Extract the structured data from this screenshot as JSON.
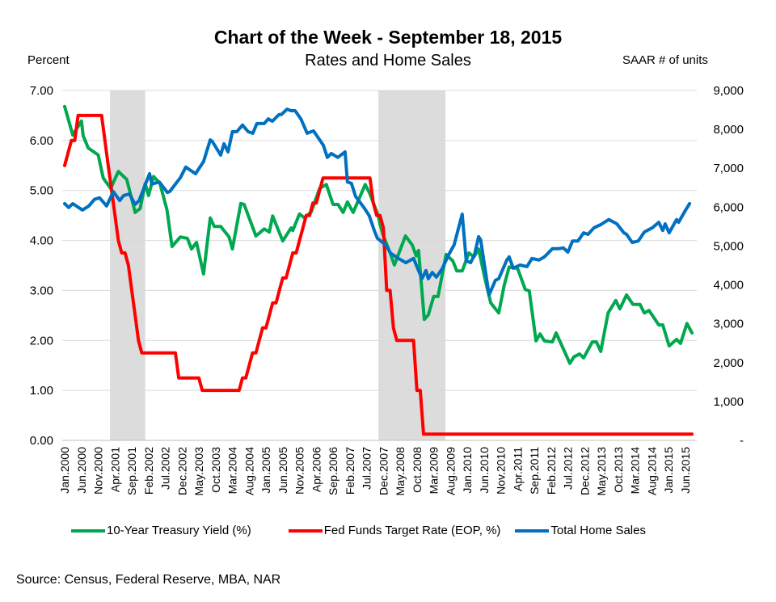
{
  "chart_data": {
    "type": "line",
    "title": "Chart of the Week - September 18, 2015",
    "subtitle": "Rates and Home Sales",
    "ylabel_left": "Percent",
    "ylabel_right": "SAAR # of units",
    "x_unit": "months since Jan 2000",
    "x_range": [
      0,
      187
    ],
    "ylim_left": [
      0,
      7
    ],
    "ylim_right": [
      0,
      9000
    ],
    "y_ticks_left": [
      "0.00",
      "1.00",
      "2.00",
      "3.00",
      "4.00",
      "5.00",
      "6.00",
      "7.00"
    ],
    "y_ticks_right": [
      "-",
      "1,000",
      "2,000",
      "3,000",
      "4,000",
      "5,000",
      "6,000",
      "7,000",
      "8,000",
      "9,000"
    ],
    "x_tick_labels": [
      "Jan.2000",
      "Jun.2000",
      "Nov.2000",
      "Apr.2001",
      "Sep.2001",
      "Feb.2002",
      "Jul.2002",
      "Dec.2002",
      "May.2003",
      "Oct.2003",
      "Mar.2004",
      "Aug.2004",
      "Jan.2005",
      "Jun.2005",
      "Nov.2005",
      "Apr.2006",
      "Sep.2006",
      "Feb.2007",
      "Jul.2007",
      "Dec.2007",
      "May.2008",
      "Oct.2008",
      "Mar.2009",
      "Aug.2009",
      "Jan.2010",
      "Jun.2010",
      "Nov.2010",
      "Apr.2011",
      "Sep.2011",
      "Feb.2012",
      "Jul.2012",
      "Dec.2012",
      "May.2013",
      "Oct.2013",
      "Mar.2014",
      "Aug.2014",
      "Jan.2015",
      "Jun.2015"
    ],
    "x_tick_step_months": 5,
    "grid": true,
    "legend_position": "bottom",
    "recessions_months": [
      [
        14,
        24.5
      ],
      [
        94,
        114
      ]
    ],
    "series": [
      {
        "name": "10-Year Treasury Yield (%)",
        "axis": "left",
        "color": "#00a84f",
        "points": [
          [
            0,
            6.68
          ],
          [
            2.4,
            6.11
          ],
          [
            5,
            6.39
          ],
          [
            5.5,
            6.1
          ],
          [
            7,
            5.85
          ],
          [
            10,
            5.71
          ],
          [
            11.5,
            5.25
          ],
          [
            13.7,
            5.04
          ],
          [
            16,
            5.38
          ],
          [
            18.5,
            5.22
          ],
          [
            21,
            4.56
          ],
          [
            22.5,
            4.64
          ],
          [
            24,
            5.14
          ],
          [
            25,
            4.9
          ],
          [
            26.5,
            5.28
          ],
          [
            28.4,
            5.14
          ],
          [
            30.5,
            4.61
          ],
          [
            32,
            3.88
          ],
          [
            34.5,
            4.07
          ],
          [
            36.6,
            4.04
          ],
          [
            37.8,
            3.83
          ],
          [
            39.3,
            3.96
          ],
          [
            41.4,
            3.33
          ],
          [
            43.4,
            4.45
          ],
          [
            44.6,
            4.28
          ],
          [
            46.5,
            4.28
          ],
          [
            49,
            4.07
          ],
          [
            50,
            3.83
          ],
          [
            52.5,
            4.74
          ],
          [
            53.5,
            4.72
          ],
          [
            57,
            4.09
          ],
          [
            59.5,
            4.23
          ],
          [
            61,
            4.17
          ],
          [
            62,
            4.49
          ],
          [
            65,
            3.99
          ],
          [
            67.5,
            4.25
          ],
          [
            68,
            4.2
          ],
          [
            70,
            4.53
          ],
          [
            71.5,
            4.45
          ],
          [
            73.5,
            4.57
          ],
          [
            76,
            5.04
          ],
          [
            78,
            5.12
          ],
          [
            80,
            4.72
          ],
          [
            81.5,
            4.72
          ],
          [
            83,
            4.56
          ],
          [
            84.3,
            4.77
          ],
          [
            86,
            4.56
          ],
          [
            89.6,
            5.12
          ],
          [
            91,
            4.93
          ],
          [
            93.5,
            4.49
          ],
          [
            94,
            4.33
          ],
          [
            95,
            4.09
          ],
          [
            97,
            3.75
          ],
          [
            98.3,
            3.51
          ],
          [
            101.6,
            4.09
          ],
          [
            103.6,
            3.91
          ],
          [
            104.8,
            3.69
          ],
          [
            105.5,
            3.8
          ],
          [
            107.2,
            2.42
          ],
          [
            108.4,
            2.51
          ],
          [
            110,
            2.88
          ],
          [
            111.3,
            2.88
          ],
          [
            113.7,
            3.72
          ],
          [
            115.7,
            3.59
          ],
          [
            116.9,
            3.39
          ],
          [
            118.5,
            3.39
          ],
          [
            120.5,
            3.75
          ],
          [
            122,
            3.67
          ],
          [
            123.4,
            3.83
          ],
          [
            125.3,
            3.23
          ],
          [
            127,
            2.75
          ],
          [
            129.4,
            2.55
          ],
          [
            131,
            3.1
          ],
          [
            132.5,
            3.47
          ],
          [
            135,
            3.44
          ],
          [
            137.3,
            3.02
          ],
          [
            138.5,
            2.99
          ],
          [
            140.5,
            1.99
          ],
          [
            141.7,
            2.13
          ],
          [
            143,
            1.99
          ],
          [
            145.4,
            1.97
          ],
          [
            146.5,
            2.15
          ],
          [
            150.6,
            1.54
          ],
          [
            151.8,
            1.67
          ],
          [
            153.5,
            1.73
          ],
          [
            154.7,
            1.65
          ],
          [
            157.3,
            1.97
          ],
          [
            158.5,
            1.97
          ],
          [
            159.8,
            1.78
          ],
          [
            162,
            2.55
          ],
          [
            164.3,
            2.8
          ],
          [
            165.5,
            2.63
          ],
          [
            167.5,
            2.91
          ],
          [
            169.4,
            2.72
          ],
          [
            171.5,
            2.72
          ],
          [
            172.8,
            2.55
          ],
          [
            174.2,
            2.6
          ],
          [
            176,
            2.42
          ],
          [
            177.1,
            2.31
          ],
          [
            178.3,
            2.31
          ],
          [
            180.2,
            1.89
          ],
          [
            182.4,
            2.02
          ],
          [
            183.6,
            1.94
          ],
          [
            185.5,
            2.34
          ],
          [
            187,
            2.15
          ]
        ]
      },
      {
        "name": "Fed Funds Target Rate (EOP, %)",
        "axis": "left",
        "color": "#ff0000",
        "steps": [
          [
            0,
            5.5
          ],
          [
            1,
            5.75
          ],
          [
            2,
            6.0
          ],
          [
            4,
            6.5
          ],
          [
            12,
            6.0
          ],
          [
            13,
            5.5
          ],
          [
            14,
            5.0
          ],
          [
            15,
            4.5
          ],
          [
            16,
            4.0
          ],
          [
            17,
            3.75
          ],
          [
            19,
            3.5
          ],
          [
            20,
            3.0
          ],
          [
            21,
            2.5
          ],
          [
            22,
            2.0
          ],
          [
            23,
            1.75
          ],
          [
            34,
            1.25
          ],
          [
            41,
            1.0
          ],
          [
            53,
            1.25
          ],
          [
            55,
            1.5
          ],
          [
            56,
            1.75
          ],
          [
            58,
            2.0
          ],
          [
            59,
            2.25
          ],
          [
            61,
            2.5
          ],
          [
            62,
            2.75
          ],
          [
            64,
            3.0
          ],
          [
            65,
            3.25
          ],
          [
            67,
            3.5
          ],
          [
            68,
            3.75
          ],
          [
            70,
            4.0
          ],
          [
            71,
            4.25
          ],
          [
            72,
            4.5
          ],
          [
            74,
            4.75
          ],
          [
            76,
            5.0
          ],
          [
            77,
            5.25
          ],
          [
            92,
            4.75
          ],
          [
            93,
            4.5
          ],
          [
            95,
            4.25
          ],
          [
            96,
            3.0
          ],
          [
            98,
            2.25
          ],
          [
            99,
            2.0
          ],
          [
            105,
            1.0
          ],
          [
            106,
            1.0
          ],
          [
            107,
            0.125
          ]
        ],
        "end_month": 187
      },
      {
        "name": "Total Home Sales",
        "axis": "right",
        "color": "#0070c0",
        "points": [
          [
            0,
            6090
          ],
          [
            1.2,
            5990
          ],
          [
            2.4,
            6090
          ],
          [
            5.3,
            5925
          ],
          [
            7.2,
            6030
          ],
          [
            8.9,
            6200
          ],
          [
            10.4,
            6240
          ],
          [
            12.5,
            6030
          ],
          [
            14.5,
            6400
          ],
          [
            16.4,
            6170
          ],
          [
            17.6,
            6300
          ],
          [
            19.3,
            6340
          ],
          [
            21,
            6070
          ],
          [
            22.2,
            6170
          ],
          [
            25.3,
            6860
          ],
          [
            26,
            6590
          ],
          [
            28.2,
            6650
          ],
          [
            30.6,
            6380
          ],
          [
            31.3,
            6400
          ],
          [
            33,
            6590
          ],
          [
            34.5,
            6760
          ],
          [
            36.1,
            7030
          ],
          [
            39,
            6860
          ],
          [
            41.4,
            7170
          ],
          [
            43.4,
            7730
          ],
          [
            44,
            7690
          ],
          [
            46.5,
            7340
          ],
          [
            47.5,
            7630
          ],
          [
            48.7,
            7420
          ],
          [
            50,
            7940
          ],
          [
            51.3,
            7940
          ],
          [
            53,
            8110
          ],
          [
            54.7,
            7940
          ],
          [
            56.1,
            7900
          ],
          [
            57.3,
            8150
          ],
          [
            59.5,
            8150
          ],
          [
            60.7,
            8270
          ],
          [
            61.9,
            8210
          ],
          [
            63.9,
            8380
          ],
          [
            64.6,
            8380
          ],
          [
            66.3,
            8520
          ],
          [
            67.5,
            8480
          ],
          [
            68.7,
            8480
          ],
          [
            70.4,
            8270
          ],
          [
            72.3,
            7900
          ],
          [
            74.2,
            7960
          ],
          [
            77.1,
            7590
          ],
          [
            78.3,
            7280
          ],
          [
            79.5,
            7380
          ],
          [
            81.4,
            7280
          ],
          [
            83.6,
            7420
          ],
          [
            84.3,
            6650
          ],
          [
            85.5,
            6610
          ],
          [
            86.7,
            6280
          ],
          [
            89.2,
            5990
          ],
          [
            90.8,
            5780
          ],
          [
            92.3,
            5400
          ],
          [
            93.2,
            5200
          ],
          [
            95.7,
            5030
          ],
          [
            97.1,
            4820
          ],
          [
            99.5,
            4680
          ],
          [
            101.7,
            4570
          ],
          [
            104,
            4680
          ],
          [
            106.5,
            4160
          ],
          [
            107.7,
            4370
          ],
          [
            108.4,
            4160
          ],
          [
            109.6,
            4320
          ],
          [
            110.8,
            4200
          ],
          [
            112.5,
            4410
          ],
          [
            114.5,
            4780
          ],
          [
            116.1,
            5030
          ],
          [
            118.5,
            5820
          ],
          [
            119.7,
            4620
          ],
          [
            121,
            4570
          ],
          [
            122.2,
            4780
          ],
          [
            123.4,
            5240
          ],
          [
            124,
            5160
          ],
          [
            126.5,
            3740
          ],
          [
            128.4,
            4120
          ],
          [
            129.4,
            4160
          ],
          [
            131.8,
            4640
          ],
          [
            132.5,
            4720
          ],
          [
            133.7,
            4430
          ],
          [
            135.7,
            4510
          ],
          [
            137.8,
            4470
          ],
          [
            139.3,
            4680
          ],
          [
            141.4,
            4640
          ],
          [
            143,
            4720
          ],
          [
            145.4,
            4930
          ],
          [
            147,
            4930
          ],
          [
            148.7,
            4950
          ],
          [
            150,
            4840
          ],
          [
            151.4,
            5130
          ],
          [
            153,
            5130
          ],
          [
            154.7,
            5340
          ],
          [
            156,
            5300
          ],
          [
            157.8,
            5470
          ],
          [
            159.8,
            5550
          ],
          [
            162.2,
            5680
          ],
          [
            164.6,
            5570
          ],
          [
            166.7,
            5340
          ],
          [
            167.5,
            5300
          ],
          [
            169.2,
            5090
          ],
          [
            171,
            5130
          ],
          [
            172.8,
            5360
          ],
          [
            175.2,
            5470
          ],
          [
            177.1,
            5610
          ],
          [
            178.3,
            5400
          ],
          [
            179,
            5570
          ],
          [
            180.2,
            5340
          ],
          [
            182.4,
            5680
          ],
          [
            183,
            5610
          ],
          [
            184.8,
            5880
          ],
          [
            186.3,
            6090
          ]
        ]
      }
    ]
  },
  "source": "Source:  Census, Federal Reserve, MBA, NAR"
}
